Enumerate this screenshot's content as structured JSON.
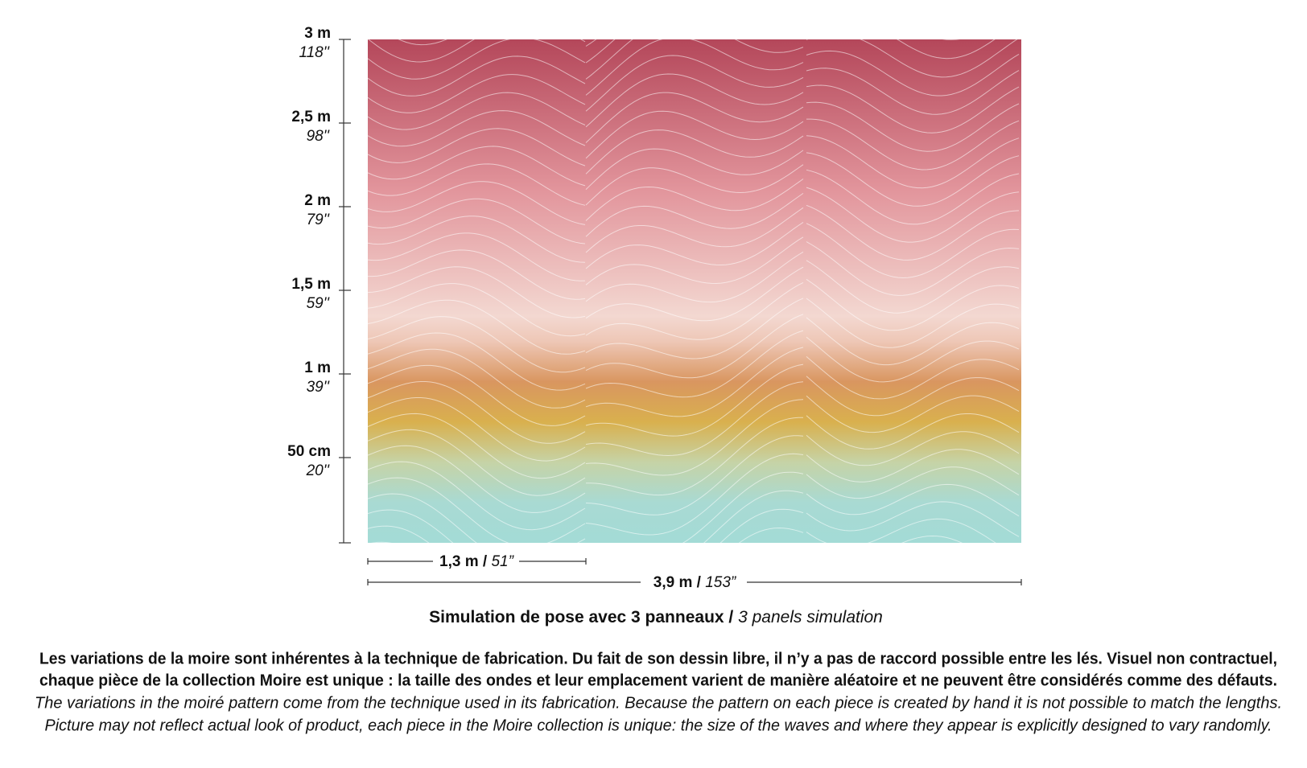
{
  "ruler": {
    "ticks": [
      {
        "metric": "3 m",
        "imperial": "118''"
      },
      {
        "metric": "2,5 m",
        "imperial": "98''"
      },
      {
        "metric": "2 m",
        "imperial": "79''"
      },
      {
        "metric": "1,5 m",
        "imperial": "59''"
      },
      {
        "metric": "1 m",
        "imperial": "39''"
      },
      {
        "metric": "50 cm",
        "imperial": "20''"
      }
    ]
  },
  "dimensions": {
    "panel_width": {
      "metric": "1,3 m /",
      "imperial": "51”"
    },
    "total_width": {
      "metric": "3,9 m /",
      "imperial": "153”"
    }
  },
  "caption": {
    "fr": "Simulation de pose avec 3 panneaux /",
    "en": "3 panels simulation"
  },
  "notice": {
    "fr": [
      "Les variations de la moire sont inhérentes à la technique de fabrication. Du fait de son dessin libre, il n’y a pas de raccord possible entre les lés. Visuel non contractuel,",
      "chaque pièce de la collection Moire est unique : la taille des ondes et leur emplacement varient de manière aléatoire et ne peuvent être considérés comme des défauts."
    ],
    "en": [
      "The variations in the moiré pattern come from the technique used in its fabrication. Because the pattern on each piece is created by hand it is not possible to match the lengths.",
      "Picture may not reflect actual look of product, each piece in the Moire collection is unique: the size of the waves and where they appear is explicitly designed to vary randomly."
    ]
  }
}
